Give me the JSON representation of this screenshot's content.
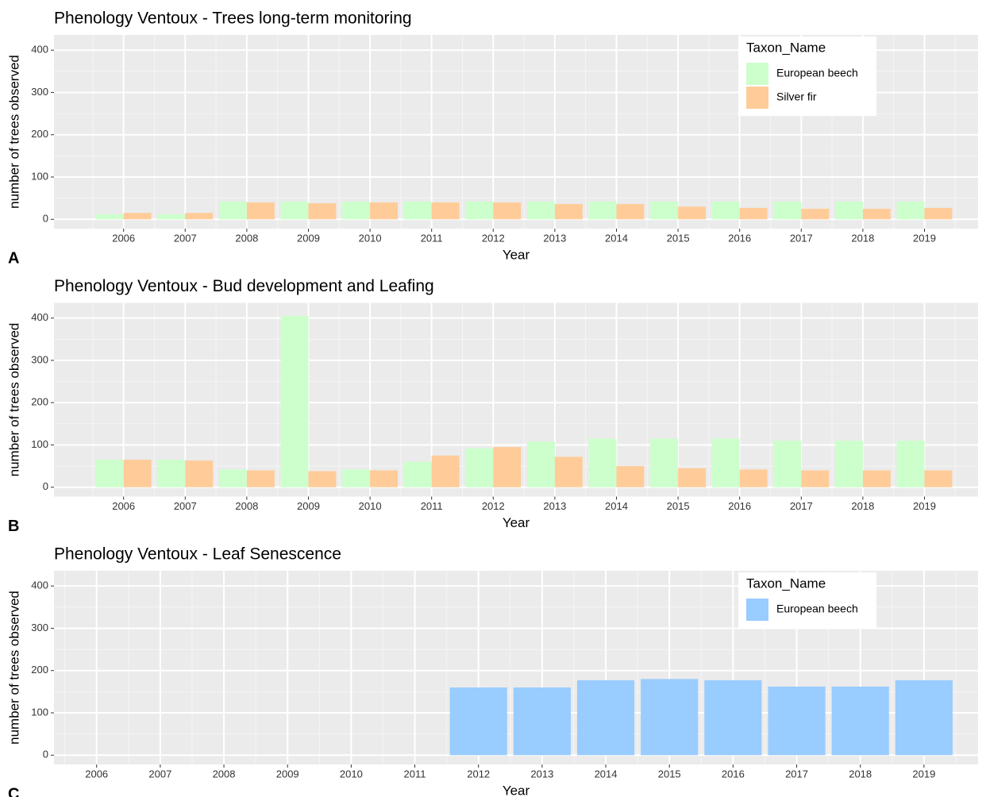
{
  "chart_data": [
    {
      "type": "bar",
      "title": "Phenology Ventoux - Trees long-term monitoring",
      "tag": "A",
      "x_label": "Year",
      "y_label": "number of trees observed",
      "categories": [
        "2006",
        "2007",
        "2008",
        "2009",
        "2010",
        "2011",
        "2012",
        "2013",
        "2014",
        "2015",
        "2016",
        "2017",
        "2018",
        "2019"
      ],
      "series": [
        {
          "name": "European beech",
          "color": "#ccffcc",
          "values": [
            12,
            12,
            42,
            42,
            42,
            42,
            42,
            42,
            42,
            42,
            42,
            42,
            42,
            42
          ]
        },
        {
          "name": "Silver fir",
          "color": "#ffcc99",
          "values": [
            15,
            15,
            40,
            38,
            40,
            40,
            40,
            36,
            36,
            30,
            27,
            25,
            25,
            27
          ]
        }
      ],
      "ylim": [
        -22,
        436
      ],
      "yticks": [
        0,
        100,
        200,
        300,
        400
      ],
      "grid": true,
      "legend": "top-right",
      "legend_title": "Taxon_Name"
    },
    {
      "type": "bar",
      "title": "Phenology Ventoux - Bud development and Leafing",
      "tag": "B",
      "x_label": "Year",
      "y_label": "number of trees observed",
      "categories": [
        "2006",
        "2007",
        "2008",
        "2009",
        "2010",
        "2011",
        "2012",
        "2013",
        "2014",
        "2015",
        "2016",
        "2017",
        "2018",
        "2019"
      ],
      "series": [
        {
          "color": "#ccffcc",
          "values": [
            65,
            65,
            42,
            405,
            42,
            60,
            92,
            108,
            115,
            115,
            115,
            110,
            110,
            110
          ]
        },
        {
          "color": "#ffcc99",
          "values": [
            65,
            63,
            40,
            38,
            40,
            75,
            95,
            72,
            50,
            45,
            42,
            40,
            40,
            40
          ]
        }
      ],
      "ylim": [
        -22,
        436
      ],
      "yticks": [
        0,
        100,
        200,
        300,
        400
      ],
      "grid": true
    },
    {
      "type": "bar",
      "title": "Phenology Ventoux - Leaf Senescence",
      "tag": "C",
      "x_label": "Year",
      "y_label": "number of trees observed",
      "categories": [
        "2006",
        "2007",
        "2008",
        "2009",
        "2010",
        "2011",
        "2012",
        "2013",
        "2014",
        "2015",
        "2016",
        "2017",
        "2018",
        "2019"
      ],
      "series": [
        {
          "name": "European beech",
          "color": "#99ccff",
          "values": [
            null,
            null,
            null,
            null,
            null,
            null,
            160,
            160,
            177,
            180,
            177,
            162,
            162,
            177
          ]
        }
      ],
      "ylim": [
        -22,
        436
      ],
      "yticks": [
        0,
        100,
        200,
        300,
        400
      ],
      "grid": true,
      "legend": "top-right",
      "legend_title": "Taxon_Name"
    }
  ]
}
